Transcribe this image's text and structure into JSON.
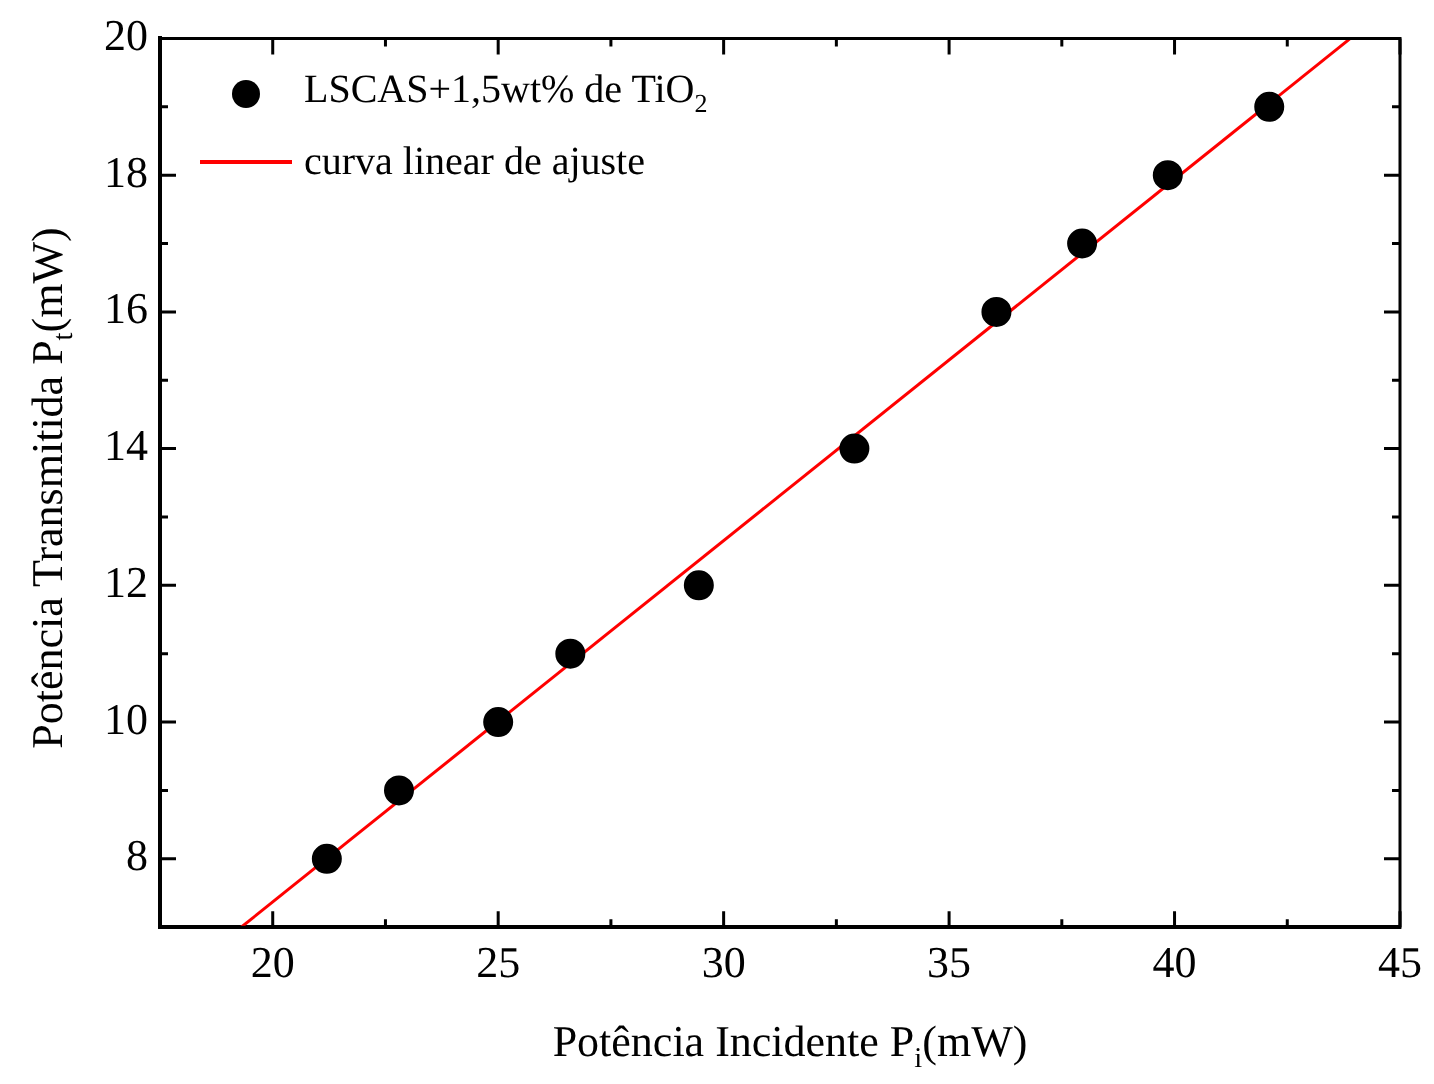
{
  "chart_data": {
    "type": "scatter",
    "xlabel": "Potência Incidente P$_{i}$(mW)",
    "ylabel": "Potência Transmitida P$_{t}$(mW)",
    "xlim": [
      17.5,
      45
    ],
    "xticks": [
      20,
      25,
      30,
      35,
      40,
      45
    ],
    "ylim": [
      7,
      20
    ],
    "yticks": [
      8,
      10,
      12,
      14,
      16,
      18,
      20
    ],
    "grid": false,
    "legend": "top left",
    "series": [
      {
        "name": "LSCAS+1,5wt% de TiO$_{2}$",
        "type": "scatter",
        "color": "#000000",
        "marker": "circle",
        "x": [
          21.2,
          22.8,
          25.0,
          26.6,
          29.45,
          32.9,
          36.05,
          37.95,
          39.85,
          42.1
        ],
        "values": [
          8,
          9,
          10,
          11,
          12,
          14,
          16,
          17,
          18,
          19
        ]
      },
      {
        "name": "curva linear de ajuste",
        "type": "line",
        "color": "#ff0000",
        "marker": "none",
        "line_style": "solid",
        "x": [
          19.3,
          43.9
        ],
        "values": [
          7,
          20
        ]
      }
    ]
  }
}
